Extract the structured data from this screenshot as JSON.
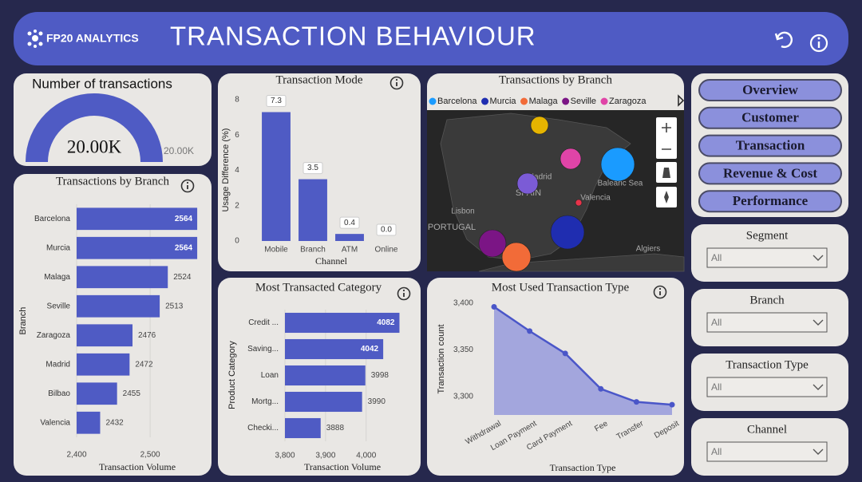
{
  "header": {
    "logo": "FP20 ANALYTICS",
    "title": "TRANSACTION BEHAVIOUR"
  },
  "nav": [
    "Overview",
    "Customer",
    "Transaction",
    "Revenue & Cost",
    "Performance"
  ],
  "filters": [
    {
      "label": "Segment",
      "value": "All"
    },
    {
      "label": "Branch",
      "value": "All"
    },
    {
      "label": "Transaction Type",
      "value": "All"
    },
    {
      "label": "Channel",
      "value": "All"
    }
  ],
  "chart_data": [
    {
      "type": "gauge",
      "title": "Number of transactions",
      "values": [
        20000
      ],
      "value_labels": [
        "20.00K"
      ],
      "ylim": [
        0,
        20000
      ],
      "yticks": [
        {
          "value": 20000,
          "label": "20.00K"
        }
      ],
      "color": "#4f5bc4"
    },
    {
      "type": "hbar",
      "title": "Transactions by Branch",
      "categories": [
        "Barcelona",
        "Murcia",
        "Malaga",
        "Seville",
        "Zaragoza",
        "Madrid",
        "Bilbao",
        "Valencia"
      ],
      "values": [
        2564,
        2564,
        2524,
        2513,
        2476,
        2472,
        2455,
        2432
      ],
      "color": "#4f5bc4",
      "xlim": [
        2400,
        2565
      ],
      "xticks": [
        {
          "value": 2400,
          "label": "2,400"
        },
        {
          "value": 2500,
          "label": "2,500"
        }
      ],
      "xlabel": "Transaction Volume",
      "ylabel": "Branch"
    },
    {
      "type": "bar",
      "title": "Transaction Mode",
      "categories": [
        "Mobile",
        "Branch",
        "ATM",
        "Online"
      ],
      "values": [
        7.3,
        3.5,
        0.4,
        0
      ],
      "value_labels": [
        "7.3",
        "3.5",
        "0.4",
        "0.0"
      ],
      "color": "#4f5bc4",
      "ylim": [
        0,
        8
      ],
      "yticks": [
        0,
        2,
        4,
        6,
        8
      ],
      "xlabel": "Channel",
      "ylabel": "Usage Difference (%)"
    },
    {
      "type": "map",
      "title": "Transactions by Branch",
      "series": [
        {
          "name": "Barcelona",
          "color": "#1a9bff"
        },
        {
          "name": "Murcia",
          "color": "#1f2db0"
        },
        {
          "name": "Malaga",
          "color": "#f26b38"
        },
        {
          "name": "Seville",
          "color": "#7b1585"
        },
        {
          "name": "Zaragoza",
          "color": "#e044a7"
        }
      ],
      "labels": [
        "Madrid",
        "SPAIN",
        "Lisbon",
        "PORTUGAL",
        "Valencia",
        "Balearic Sea",
        "Algiers"
      ]
    },
    {
      "type": "hbar",
      "title": "Most Transacted Category",
      "categories": [
        "Credit ...",
        "Saving...",
        "Loan",
        "Mortg...",
        "Checki..."
      ],
      "values": [
        4082,
        4042,
        3998,
        3990,
        3888
      ],
      "color": "#4f5bc4",
      "xlim": [
        3800,
        4085
      ],
      "xticks": [
        {
          "value": 3800,
          "label": "3,800"
        },
        {
          "value": 3900,
          "label": "3,900"
        },
        {
          "value": 4000,
          "label": "4,000"
        }
      ],
      "xlabel": "Transaction Volume",
      "ylabel": "Product Category"
    },
    {
      "type": "area",
      "title": "Most Used Transaction Type",
      "categories": [
        "Withdrawal",
        "Loan Payment",
        "Card Payment",
        "Fee",
        "Transfer",
        "Deposit"
      ],
      "values": [
        3396,
        3370,
        3346,
        3308,
        3294,
        3291
      ],
      "color": "#4a56c8",
      "ylim": [
        3280,
        3405
      ],
      "yticks": [
        {
          "value": 3300,
          "label": "3,300"
        },
        {
          "value": 3350,
          "label": "3,350"
        },
        {
          "value": 3400,
          "label": "3,400"
        }
      ],
      "xlabel": "Transaction Type",
      "ylabel": "Transaction count"
    }
  ]
}
